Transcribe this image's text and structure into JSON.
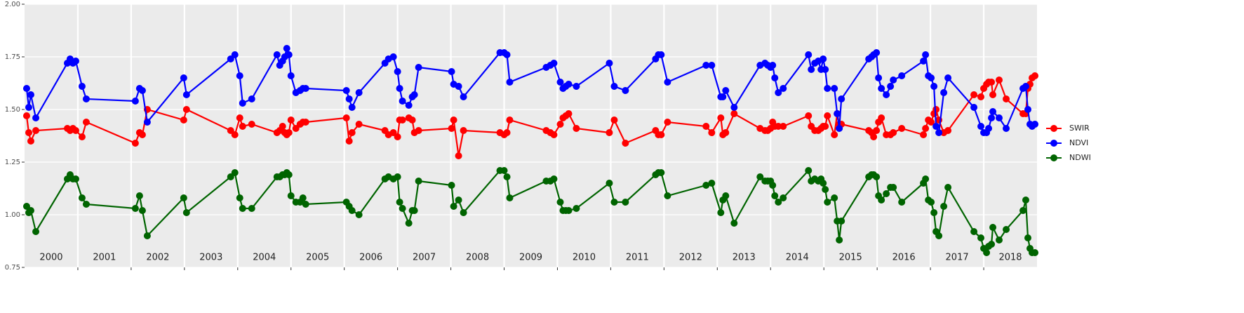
{
  "chart_data": {
    "type": "line",
    "x": [
      2000.039,
      2000.079,
      2000.118,
      2000.211,
      2000.803,
      2000.855,
      2000.908,
      2000.961,
      2001.079,
      2001.158,
      2002.079,
      2002.158,
      2002.211,
      2002.303,
      2002.987,
      2003.039,
      2003.868,
      2003.947,
      2004.039,
      2004.092,
      2004.263,
      2004.737,
      2004.789,
      2004.842,
      2004.882,
      2004.921,
      2004.961,
      2005.0,
      2005.092,
      2005.171,
      2005.224,
      2005.276,
      2006.039,
      2006.092,
      2006.145,
      2006.276,
      2006.763,
      2006.829,
      2006.921,
      2007.0,
      2007.039,
      2007.092,
      2007.211,
      2007.276,
      2007.316,
      2007.395,
      2008.013,
      2008.053,
      2008.145,
      2008.237,
      2008.921,
      2009.0,
      2009.053,
      2009.105,
      2009.789,
      2009.868,
      2009.934,
      2010.053,
      2010.105,
      2010.158,
      2010.211,
      2010.355,
      2010.974,
      2011.066,
      2011.276,
      2011.842,
      2011.895,
      2011.947,
      2012.066,
      2012.789,
      2012.895,
      2013.066,
      2013.105,
      2013.158,
      2013.316,
      2013.803,
      2013.895,
      2013.947,
      2014.0,
      2014.039,
      2014.079,
      2014.145,
      2014.237,
      2014.711,
      2014.763,
      2014.829,
      2014.895,
      2014.947,
      2014.987,
      2015.026,
      2015.066,
      2015.197,
      2015.25,
      2015.289,
      2015.329,
      2015.842,
      2015.895,
      2015.934,
      2015.987,
      2016.026,
      2016.079,
      2016.171,
      2016.25,
      2016.303,
      2016.461,
      2016.868,
      2016.908,
      2016.961,
      2017.013,
      2017.066,
      2017.105,
      2017.158,
      2017.25,
      2017.329,
      2017.816,
      2017.947,
      2018.0,
      2018.053,
      2018.092,
      2018.145,
      2018.171,
      2018.289,
      2018.421,
      2018.737,
      2018.789,
      2018.829,
      2018.868,
      2018.908,
      2018.961
    ],
    "series": [
      {
        "name": "SWIR",
        "color": "#ff0000",
        "values": [
          1.47,
          1.39,
          1.35,
          1.4,
          1.41,
          1.4,
          1.41,
          1.4,
          1.37,
          1.44,
          1.34,
          1.39,
          1.38,
          1.5,
          1.45,
          1.5,
          1.4,
          1.38,
          1.46,
          1.42,
          1.43,
          1.39,
          1.4,
          1.42,
          1.39,
          1.38,
          1.39,
          1.45,
          1.41,
          1.43,
          1.44,
          1.44,
          1.46,
          1.35,
          1.39,
          1.43,
          1.4,
          1.38,
          1.39,
          1.37,
          1.45,
          1.45,
          1.46,
          1.45,
          1.39,
          1.4,
          1.41,
          1.45,
          1.28,
          1.4,
          1.39,
          1.38,
          1.39,
          1.45,
          1.4,
          1.39,
          1.38,
          1.43,
          1.46,
          1.47,
          1.48,
          1.41,
          1.39,
          1.45,
          1.34,
          1.4,
          1.38,
          1.38,
          1.44,
          1.42,
          1.39,
          1.46,
          1.38,
          1.39,
          1.48,
          1.41,
          1.4,
          1.4,
          1.41,
          1.44,
          1.42,
          1.42,
          1.42,
          1.47,
          1.42,
          1.4,
          1.4,
          1.41,
          1.42,
          1.42,
          1.47,
          1.38,
          1.48,
          1.43,
          1.43,
          1.4,
          1.39,
          1.37,
          1.4,
          1.44,
          1.46,
          1.38,
          1.38,
          1.39,
          1.41,
          1.38,
          1.41,
          1.45,
          1.44,
          1.48,
          1.5,
          1.45,
          1.39,
          1.4,
          1.57,
          1.56,
          1.6,
          1.62,
          1.63,
          1.63,
          1.57,
          1.64,
          1.55,
          1.48,
          1.48,
          1.6,
          1.62,
          1.65,
          1.66
        ]
      },
      {
        "name": "NDVI",
        "color": "#0000ff",
        "values": [
          1.6,
          1.51,
          1.57,
          1.46,
          1.72,
          1.74,
          1.72,
          1.73,
          1.61,
          1.55,
          1.54,
          1.6,
          1.59,
          1.44,
          1.65,
          1.57,
          1.74,
          1.76,
          1.66,
          1.53,
          1.55,
          1.76,
          1.71,
          1.73,
          1.75,
          1.79,
          1.76,
          1.66,
          1.58,
          1.59,
          1.6,
          1.6,
          1.59,
          1.55,
          1.51,
          1.58,
          1.72,
          1.74,
          1.75,
          1.68,
          1.6,
          1.54,
          1.52,
          1.56,
          1.57,
          1.7,
          1.68,
          1.62,
          1.61,
          1.56,
          1.77,
          1.77,
          1.76,
          1.63,
          1.7,
          1.71,
          1.72,
          1.63,
          1.6,
          1.61,
          1.62,
          1.61,
          1.72,
          1.61,
          1.59,
          1.74,
          1.76,
          1.76,
          1.63,
          1.71,
          1.71,
          1.56,
          1.56,
          1.59,
          1.51,
          1.71,
          1.72,
          1.71,
          1.7,
          1.71,
          1.65,
          1.58,
          1.6,
          1.76,
          1.69,
          1.72,
          1.73,
          1.69,
          1.74,
          1.69,
          1.6,
          1.6,
          1.48,
          1.41,
          1.55,
          1.74,
          1.75,
          1.76,
          1.77,
          1.65,
          1.6,
          1.57,
          1.61,
          1.64,
          1.66,
          1.73,
          1.76,
          1.66,
          1.65,
          1.61,
          1.42,
          1.39,
          1.58,
          1.65,
          1.51,
          1.42,
          1.39,
          1.39,
          1.41,
          1.46,
          1.49,
          1.46,
          1.41,
          1.6,
          1.61,
          1.5,
          1.43,
          1.42,
          1.43
        ]
      },
      {
        "name": "NDWI",
        "color": "#006400",
        "values": [
          1.04,
          1.01,
          1.02,
          0.92,
          1.17,
          1.19,
          1.17,
          1.17,
          1.08,
          1.05,
          1.03,
          1.09,
          1.02,
          0.9,
          1.08,
          1.01,
          1.18,
          1.2,
          1.08,
          1.03,
          1.03,
          1.18,
          1.18,
          1.19,
          1.19,
          1.2,
          1.19,
          1.09,
          1.06,
          1.06,
          1.08,
          1.05,
          1.06,
          1.04,
          1.02,
          1.0,
          1.17,
          1.18,
          1.17,
          1.18,
          1.06,
          1.03,
          0.96,
          1.02,
          1.02,
          1.16,
          1.14,
          1.04,
          1.07,
          1.01,
          1.21,
          1.21,
          1.18,
          1.08,
          1.16,
          1.16,
          1.17,
          1.06,
          1.02,
          1.02,
          1.02,
          1.03,
          1.15,
          1.06,
          1.06,
          1.19,
          1.2,
          1.2,
          1.09,
          1.14,
          1.15,
          1.01,
          1.07,
          1.09,
          0.96,
          1.18,
          1.16,
          1.16,
          1.16,
          1.14,
          1.09,
          1.06,
          1.08,
          1.21,
          1.16,
          1.17,
          1.16,
          1.17,
          1.15,
          1.12,
          1.06,
          1.08,
          0.97,
          0.88,
          0.97,
          1.18,
          1.19,
          1.19,
          1.18,
          1.09,
          1.07,
          1.1,
          1.13,
          1.13,
          1.06,
          1.15,
          1.17,
          1.07,
          1.06,
          1.01,
          0.92,
          0.9,
          1.04,
          1.13,
          0.92,
          0.89,
          0.84,
          0.82,
          0.85,
          0.86,
          0.94,
          0.88,
          0.93,
          1.02,
          1.07,
          0.89,
          0.84,
          0.82,
          0.82
        ]
      }
    ],
    "year_labels": [
      "2000",
      "2001",
      "2002",
      "2003",
      "2004",
      "2005",
      "2006",
      "2007",
      "2008",
      "2009",
      "2010",
      "2011",
      "2012",
      "2013",
      "2014",
      "2015",
      "2016",
      "2017",
      "2018"
    ],
    "xlim": [
      2000,
      2019
    ],
    "xticks": [
      2001,
      2002,
      2003,
      2004,
      2005,
      2006,
      2007,
      2008,
      2009,
      2010,
      2011,
      2012,
      2013,
      2014,
      2015,
      2016,
      2017,
      2018
    ],
    "ylim": [
      0.75,
      2.0
    ],
    "yticks": [
      {
        "value": 0.75,
        "label": "0.75"
      },
      {
        "value": 1.0,
        "label": "1.00"
      },
      {
        "value": 1.25,
        "label": "1.25"
      },
      {
        "value": 1.5,
        "label": "1.50"
      },
      {
        "value": 1.75,
        "label": "1.75"
      },
      {
        "value": 2.0,
        "label": "2.00"
      }
    ],
    "grid": true
  }
}
